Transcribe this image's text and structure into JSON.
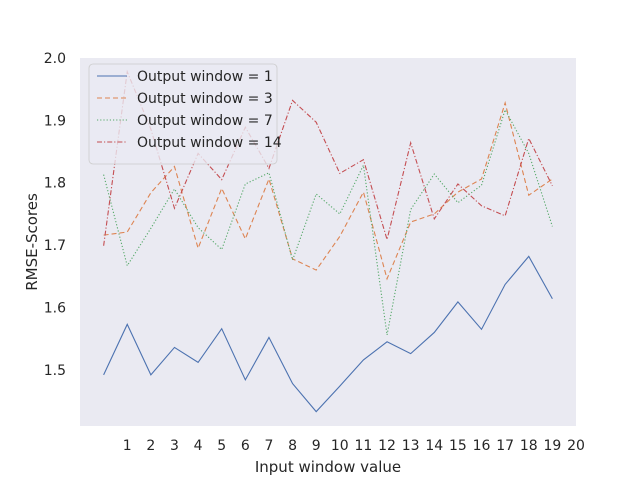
{
  "chart_data": {
    "type": "line",
    "xlabel": "Input window value",
    "ylabel": "RMSE-Scores",
    "xlim": [
      -1,
      20
    ],
    "ylim": [
      1.41,
      2.0
    ],
    "xticks": [
      1,
      2,
      3,
      4,
      5,
      6,
      7,
      8,
      9,
      10,
      11,
      12,
      13,
      14,
      15,
      16,
      17,
      18,
      19,
      20
    ],
    "yticks": [
      1.5,
      1.6,
      1.7,
      1.8,
      1.9,
      2.0
    ],
    "ytick_labels": [
      "1.5",
      "1.6",
      "1.7",
      "1.8",
      "1.9",
      "2.0"
    ],
    "grid": false,
    "legend_position": "top-left",
    "x": [
      0,
      1,
      2,
      3,
      4,
      5,
      6,
      7,
      8,
      9,
      10,
      11,
      12,
      13,
      14,
      15,
      16,
      17,
      18,
      19
    ],
    "series": [
      {
        "name": "Output window = 1",
        "color": "#4c72b0",
        "dash": "solid",
        "values": [
          1.492,
          1.573,
          1.492,
          1.536,
          1.512,
          1.566,
          1.484,
          1.552,
          1.478,
          1.433,
          1.474,
          1.516,
          1.545,
          1.526,
          1.56,
          1.609,
          1.565,
          1.637,
          1.682,
          1.614
        ]
      },
      {
        "name": "Output window = 3",
        "color": "#dd8452",
        "dash": "dashed",
        "values": [
          1.716,
          1.721,
          1.784,
          1.826,
          1.695,
          1.791,
          1.71,
          1.806,
          1.678,
          1.66,
          1.714,
          1.785,
          1.646,
          1.737,
          1.75,
          1.785,
          1.806,
          1.928,
          1.78,
          1.806
        ]
      },
      {
        "name": "Output window = 7",
        "color": "#55a868",
        "dash": "dotted",
        "values": [
          1.813,
          1.667,
          1.727,
          1.79,
          1.728,
          1.693,
          1.798,
          1.816,
          1.676,
          1.782,
          1.75,
          1.828,
          1.556,
          1.757,
          1.814,
          1.768,
          1.796,
          1.917,
          1.847,
          1.73
        ]
      },
      {
        "name": "Output window = 14",
        "color": "#c44e52",
        "dash": "dashdot",
        "values": [
          1.699,
          1.978,
          1.886,
          1.759,
          1.847,
          1.805,
          1.889,
          1.823,
          1.932,
          1.897,
          1.815,
          1.837,
          1.709,
          1.864,
          1.742,
          1.798,
          1.763,
          1.747,
          1.871,
          1.795
        ]
      }
    ]
  }
}
